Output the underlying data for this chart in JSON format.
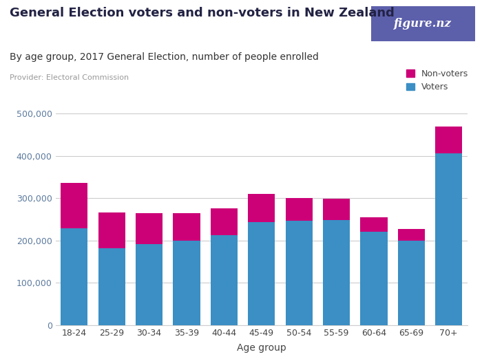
{
  "title": "General Election voters and non-voters in New Zealand",
  "subtitle": "By age group, 2017 General Election, number of people enrolled",
  "provider": "Provider: Electoral Commission",
  "xlabel": "Age group",
  "categories": [
    "18-24",
    "25-29",
    "30-34",
    "35-39",
    "40-44",
    "45-49",
    "50-54",
    "55-59",
    "60-64",
    "65-69",
    "70+"
  ],
  "voters": [
    228000,
    182000,
    192000,
    200000,
    213000,
    244000,
    246000,
    248000,
    220000,
    200000,
    407000
  ],
  "non_voters": [
    108000,
    85000,
    72000,
    65000,
    63000,
    66000,
    55000,
    50000,
    35000,
    27000,
    62000
  ],
  "voter_color": "#3b8fc4",
  "non_voter_color": "#cc0077",
  "background_color": "#ffffff",
  "grid_color": "#cccccc",
  "ylim": [
    0,
    530000
  ],
  "yticks": [
    0,
    100000,
    200000,
    300000,
    400000,
    500000
  ],
  "ytick_labels": [
    "0",
    "100,000",
    "200,000",
    "300,000",
    "400,000",
    "500,000"
  ],
  "legend_non_voters": "Non-voters",
  "legend_voters": "Voters",
  "logo_bg_color": "#5c5faa",
  "logo_text": "figure.nz",
  "title_fontsize": 13,
  "subtitle_fontsize": 10,
  "provider_fontsize": 8,
  "axis_label_fontsize": 10,
  "tick_fontsize": 9,
  "ytick_color": "#5c7a9e",
  "title_color": "#222244",
  "subtitle_color": "#333333",
  "provider_color": "#999999"
}
